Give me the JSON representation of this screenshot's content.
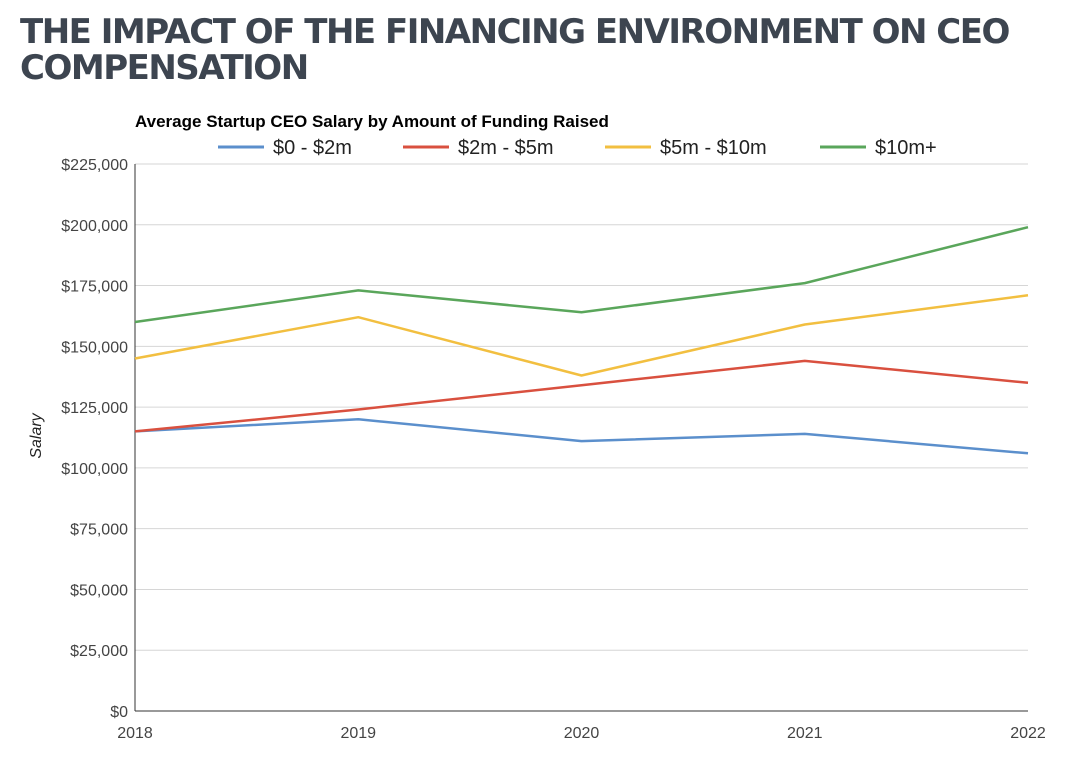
{
  "page": {
    "title_lines": [
      "THE IMPACT OF THE FINANCING ENVIRONMENT ON CEO",
      "COMPENSATION"
    ]
  },
  "chart_data": {
    "type": "line",
    "title": "Average Startup CEO Salary by Amount of Funding Raised",
    "xlabel": "",
    "ylabel": "Salary",
    "x": [
      "2018",
      "2019",
      "2020",
      "2021",
      "2022"
    ],
    "ylim": [
      0,
      225000
    ],
    "yticks": [
      0,
      25000,
      50000,
      75000,
      100000,
      125000,
      150000,
      175000,
      200000,
      225000
    ],
    "ytick_labels": [
      "$0",
      "$25,000",
      "$50,000",
      "$75,000",
      "$100,000",
      "$125,000",
      "$150,000",
      "$175,000",
      "$200,000",
      "$225,000"
    ],
    "grid": true,
    "legend_position": "top",
    "series": [
      {
        "name": "$0 - $2m",
        "color": "#5b8fcc",
        "values": [
          115000,
          120000,
          111000,
          114000,
          106000
        ]
      },
      {
        "name": "$2m - $5m",
        "color": "#d9503f",
        "values": [
          115000,
          124000,
          134000,
          144000,
          135000
        ]
      },
      {
        "name": "$5m - $10m",
        "color": "#f2bf40",
        "values": [
          145000,
          162000,
          138000,
          159000,
          171000
        ]
      },
      {
        "name": "$10m+",
        "color": "#5aa65b",
        "values": [
          160000,
          173000,
          164000,
          176000,
          199000
        ]
      }
    ]
  }
}
